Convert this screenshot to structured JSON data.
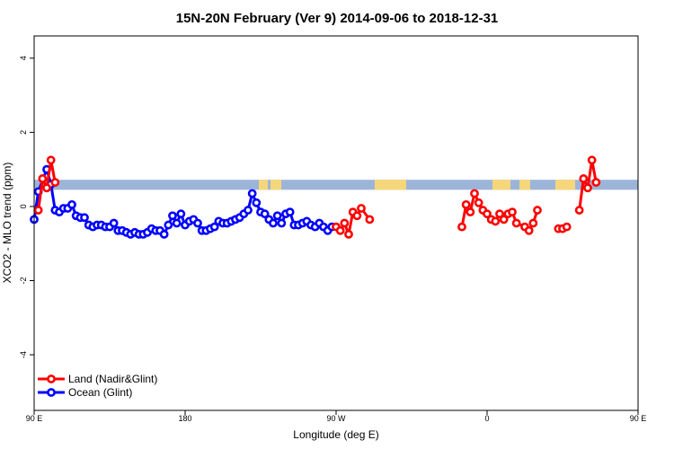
{
  "chart_data": {
    "type": "line",
    "title": "15N-20N February (Ver 9)   2014-09-06 to 2018-12-31",
    "xlabel": "Longitude (deg E)",
    "ylabel": "XCO2 - MLO trend (ppm)",
    "xlim": [
      90,
      450
    ],
    "ylim": [
      -5.5,
      4.6
    ],
    "x_ticks": [
      {
        "value": 90,
        "label": "90 E"
      },
      {
        "value": 180,
        "label": "180"
      },
      {
        "value": 270,
        "label": "90 W"
      },
      {
        "value": 360,
        "label": "0"
      },
      {
        "value": 450,
        "label": "90 E"
      },
      {
        "value": 540,
        "label": "180"
      }
    ],
    "y_ticks": [
      {
        "value": -4,
        "label": "-4"
      },
      {
        "value": -2,
        "label": "-2"
      },
      {
        "value": 0,
        "label": "0"
      },
      {
        "value": 2,
        "label": "2"
      },
      {
        "value": 4,
        "label": "4"
      }
    ],
    "grid": false,
    "legend_position": "bottom-left",
    "land_band": {
      "y_bottom": 0.45,
      "y_top": 0.72,
      "ocean_color": "#9db4d9",
      "land_color": "#f5d77a"
    },
    "series": [
      {
        "name": "Land (Nadir&Glint)",
        "color": "#ff0000",
        "points": [
          [
            92.5,
            -0.1
          ],
          [
            95,
            0.75
          ],
          [
            97.5,
            0.5
          ],
          [
            100,
            1.25
          ],
          [
            102.5,
            0.65
          ],
          [
            270,
            -0.55
          ],
          [
            272.5,
            -0.65
          ],
          [
            275,
            -0.45
          ],
          [
            277.5,
            -0.75
          ],
          [
            280,
            -0.15
          ],
          [
            282.5,
            -0.25
          ],
          [
            285,
            -0.05
          ],
          [
            290,
            -0.35
          ],
          [
            345,
            -0.55
          ],
          [
            347.5,
            0.05
          ],
          [
            350,
            -0.15
          ],
          [
            352.5,
            0.35
          ],
          [
            355,
            0.1
          ],
          [
            357.5,
            -0.1
          ],
          [
            360,
            -0.2
          ],
          [
            362.5,
            -0.35
          ],
          [
            365,
            -0.4
          ],
          [
            367.5,
            -0.2
          ],
          [
            370,
            -0.35
          ],
          [
            372.5,
            -0.2
          ],
          [
            375,
            -0.15
          ],
          [
            377.5,
            -0.45
          ],
          [
            382.5,
            -0.55
          ],
          [
            385,
            -0.65
          ],
          [
            387.5,
            -0.45
          ],
          [
            390,
            -0.1
          ],
          [
            402.5,
            -0.6
          ],
          [
            405,
            -0.6
          ],
          [
            407.5,
            -0.55
          ],
          [
            415,
            -0.1
          ],
          [
            417.5,
            0.75
          ],
          [
            420,
            0.5
          ],
          [
            422.5,
            1.25
          ],
          [
            425,
            0.65
          ]
        ]
      },
      {
        "name": "Ocean (Glint)",
        "color": "#0000ff",
        "points": [
          [
            90,
            -0.35
          ],
          [
            92.5,
            0.4
          ],
          [
            97.5,
            1.0
          ],
          [
            100,
            0.6
          ],
          [
            102.5,
            -0.1
          ],
          [
            105,
            -0.15
          ],
          [
            107.5,
            -0.05
          ],
          [
            110,
            -0.05
          ],
          [
            112.5,
            0.05
          ],
          [
            115,
            -0.25
          ],
          [
            117.5,
            -0.3
          ],
          [
            120,
            -0.3
          ],
          [
            122.5,
            -0.5
          ],
          [
            125,
            -0.55
          ],
          [
            127.5,
            -0.5
          ],
          [
            130,
            -0.5
          ],
          [
            132.5,
            -0.55
          ],
          [
            135,
            -0.55
          ],
          [
            137.5,
            -0.45
          ],
          [
            140,
            -0.65
          ],
          [
            142.5,
            -0.65
          ],
          [
            145,
            -0.7
          ],
          [
            147.5,
            -0.75
          ],
          [
            150,
            -0.7
          ],
          [
            152.5,
            -0.75
          ],
          [
            155,
            -0.75
          ],
          [
            157.5,
            -0.7
          ],
          [
            160,
            -0.6
          ],
          [
            162.5,
            -0.65
          ],
          [
            165,
            -0.65
          ],
          [
            167.5,
            -0.75
          ],
          [
            170,
            -0.5
          ],
          [
            172.5,
            -0.25
          ],
          [
            175,
            -0.45
          ],
          [
            177.5,
            -0.2
          ],
          [
            180,
            -0.5
          ],
          [
            182.5,
            -0.4
          ],
          [
            185,
            -0.35
          ],
          [
            187.5,
            -0.45
          ],
          [
            190,
            -0.65
          ],
          [
            192.5,
            -0.65
          ],
          [
            195,
            -0.6
          ],
          [
            197.5,
            -0.55
          ],
          [
            200,
            -0.4
          ],
          [
            202.5,
            -0.45
          ],
          [
            205,
            -0.45
          ],
          [
            207.5,
            -0.4
          ],
          [
            210,
            -0.35
          ],
          [
            212.5,
            -0.3
          ],
          [
            215,
            -0.2
          ],
          [
            217.5,
            -0.1
          ],
          [
            220,
            0.35
          ],
          [
            222.5,
            0.1
          ],
          [
            225,
            -0.15
          ],
          [
            227.5,
            -0.2
          ],
          [
            230,
            -0.35
          ],
          [
            232.5,
            -0.45
          ],
          [
            235,
            -0.25
          ],
          [
            237.5,
            -0.45
          ],
          [
            240,
            -0.2
          ],
          [
            242.5,
            -0.15
          ],
          [
            245,
            -0.5
          ],
          [
            247.5,
            -0.5
          ],
          [
            250,
            -0.45
          ],
          [
            252.5,
            -0.4
          ],
          [
            255,
            -0.5
          ],
          [
            257.5,
            -0.55
          ],
          [
            260,
            -0.45
          ],
          [
            262.5,
            -0.55
          ],
          [
            265,
            -0.65
          ],
          [
            267.5,
            -0.55
          ]
        ]
      }
    ]
  }
}
